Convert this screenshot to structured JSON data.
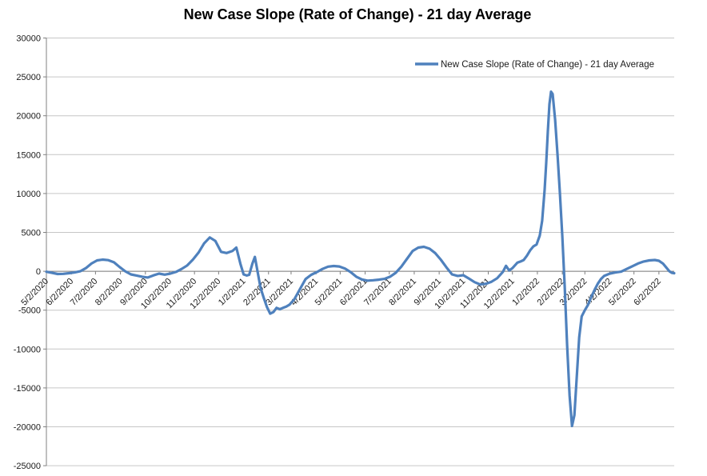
{
  "chart": {
    "title": "New Case Slope (Rate of Change) - 21 day Average",
    "legend_label": "New Case Slope (Rate of Change) - 21 day Average"
  },
  "chart_data": {
    "type": "line",
    "title": "New Case Slope (Rate of Change) - 21 day Average",
    "xlabel": "",
    "ylabel": "",
    "ylim": [
      -25000,
      30000
    ],
    "y_tick_step": 5000,
    "y_ticks": [
      30000,
      25000,
      20000,
      15000,
      10000,
      5000,
      0,
      -5000,
      -10000,
      -15000,
      -20000,
      -25000
    ],
    "x_tick_labels": [
      "5/2/2020",
      "6/2/2020",
      "7/2/2020",
      "8/2/2020",
      "9/2/2020",
      "10/2/2020",
      "11/2/2020",
      "12/2/2020",
      "1/2/2021",
      "2/2/2021",
      "3/2/2021",
      "4/2/2021",
      "5/2/2021",
      "6/2/2021",
      "7/2/2021",
      "8/2/2021",
      "9/2/2021",
      "10/2/2021",
      "11/2/2021",
      "12/2/2021",
      "1/2/2022",
      "2/2/2022",
      "3/2/2022",
      "4/2/2022",
      "5/2/2022",
      "6/2/2022"
    ],
    "grid": true,
    "legend_position": "top-right",
    "colors": {
      "line": "#4F81BD",
      "gridline": "#C6C6C6",
      "axis": "#808080",
      "text": "#1a1a1a"
    },
    "series": [
      {
        "name": "New Case Slope (Rate of Change) - 21 day Average",
        "points": [
          [
            "5/2/2020",
            -60
          ],
          [
            "5/9/2020",
            -200
          ],
          [
            "5/16/2020",
            -350
          ],
          [
            "5/23/2020",
            -330
          ],
          [
            "5/30/2020",
            -250
          ],
          [
            "6/6/2020",
            -150
          ],
          [
            "6/13/2020",
            0
          ],
          [
            "6/20/2020",
            400
          ],
          [
            "6/27/2020",
            1000
          ],
          [
            "7/4/2020",
            1400
          ],
          [
            "7/11/2020",
            1500
          ],
          [
            "7/18/2020",
            1430
          ],
          [
            "7/25/2020",
            1150
          ],
          [
            "8/1/2020",
            550
          ],
          [
            "8/8/2020",
            0
          ],
          [
            "8/15/2020",
            -400
          ],
          [
            "8/22/2020",
            -550
          ],
          [
            "8/29/2020",
            -700
          ],
          [
            "9/5/2020",
            -800
          ],
          [
            "9/12/2020",
            -520
          ],
          [
            "9/19/2020",
            -300
          ],
          [
            "9/26/2020",
            -430
          ],
          [
            "10/3/2020",
            -300
          ],
          [
            "10/10/2020",
            -80
          ],
          [
            "10/17/2020",
            300
          ],
          [
            "10/24/2020",
            750
          ],
          [
            "10/31/2020",
            1500
          ],
          [
            "11/7/2020",
            2400
          ],
          [
            "11/14/2020",
            3600
          ],
          [
            "11/21/2020",
            4350
          ],
          [
            "11/28/2020",
            3900
          ],
          [
            "12/5/2020",
            2500
          ],
          [
            "12/12/2020",
            2350
          ],
          [
            "12/19/2020",
            2600
          ],
          [
            "12/24/2020",
            3050
          ],
          [
            "12/29/2020",
            1000
          ],
          [
            "1/2/2021",
            -400
          ],
          [
            "1/6/2021",
            -550
          ],
          [
            "1/9/2021",
            -450
          ],
          [
            "1/13/2021",
            1000
          ],
          [
            "1/16/2021",
            1850
          ],
          [
            "1/20/2021",
            -400
          ],
          [
            "1/23/2021",
            -2100
          ],
          [
            "1/27/2021",
            -3400
          ],
          [
            "1/31/2021",
            -4600
          ],
          [
            "2/4/2021",
            -5450
          ],
          [
            "2/8/2021",
            -5250
          ],
          [
            "2/12/2021",
            -4700
          ],
          [
            "2/16/2021",
            -4880
          ],
          [
            "2/20/2021",
            -4700
          ],
          [
            "2/24/2021",
            -4550
          ],
          [
            "2/28/2021",
            -4300
          ],
          [
            "3/6/2021",
            -3600
          ],
          [
            "3/13/2021",
            -2300
          ],
          [
            "3/20/2021",
            -1000
          ],
          [
            "3/27/2021",
            -450
          ],
          [
            "4/3/2021",
            -100
          ],
          [
            "4/10/2021",
            300
          ],
          [
            "4/17/2021",
            600
          ],
          [
            "4/24/2021",
            680
          ],
          [
            "5/1/2021",
            620
          ],
          [
            "5/8/2021",
            350
          ],
          [
            "5/15/2021",
            -100
          ],
          [
            "5/22/2021",
            -700
          ],
          [
            "5/29/2021",
            -1050
          ],
          [
            "6/5/2021",
            -1200
          ],
          [
            "6/12/2021",
            -1150
          ],
          [
            "6/19/2021",
            -1080
          ],
          [
            "6/26/2021",
            -980
          ],
          [
            "7/3/2021",
            -700
          ],
          [
            "7/10/2021",
            -200
          ],
          [
            "7/17/2021",
            600
          ],
          [
            "7/24/2021",
            1600
          ],
          [
            "7/31/2021",
            2600
          ],
          [
            "8/7/2021",
            3050
          ],
          [
            "8/14/2021",
            3150
          ],
          [
            "8/21/2021",
            2900
          ],
          [
            "8/28/2021",
            2350
          ],
          [
            "9/4/2021",
            1500
          ],
          [
            "9/11/2021",
            500
          ],
          [
            "9/18/2021",
            -400
          ],
          [
            "9/25/2021",
            -600
          ],
          [
            "10/2/2021",
            -500
          ],
          [
            "10/9/2021",
            -950
          ],
          [
            "10/16/2021",
            -1400
          ],
          [
            "10/23/2021",
            -1700
          ],
          [
            "10/30/2021",
            -1600
          ],
          [
            "11/6/2021",
            -1350
          ],
          [
            "11/13/2021",
            -900
          ],
          [
            "11/20/2021",
            -100
          ],
          [
            "11/24/2021",
            700
          ],
          [
            "11/28/2021",
            100
          ],
          [
            "12/2/2021",
            400
          ],
          [
            "12/8/2021",
            1100
          ],
          [
            "12/12/2021",
            1250
          ],
          [
            "12/16/2021",
            1450
          ],
          [
            "12/20/2021",
            2000
          ],
          [
            "12/24/2021",
            2700
          ],
          [
            "12/28/2021",
            3200
          ],
          [
            "1/1/2022",
            3450
          ],
          [
            "1/5/2022",
            4600
          ],
          [
            "1/8/2022",
            6500
          ],
          [
            "1/11/2022",
            10500
          ],
          [
            "1/13/2022",
            14000
          ],
          [
            "1/15/2022",
            18000
          ],
          [
            "1/17/2022",
            21500
          ],
          [
            "1/19/2022",
            23100
          ],
          [
            "1/21/2022",
            22800
          ],
          [
            "1/24/2022",
            19500
          ],
          [
            "1/27/2022",
            15000
          ],
          [
            "1/30/2022",
            10000
          ],
          [
            "2/2/2022",
            4500
          ],
          [
            "2/5/2022",
            -2000
          ],
          [
            "2/8/2022",
            -9500
          ],
          [
            "2/11/2022",
            -16000
          ],
          [
            "2/14/2022",
            -19900
          ],
          [
            "2/17/2022",
            -18500
          ],
          [
            "2/20/2022",
            -13500
          ],
          [
            "2/23/2022",
            -8500
          ],
          [
            "2/26/2022",
            -5800
          ],
          [
            "3/2/2022",
            -5000
          ],
          [
            "3/6/2022",
            -4300
          ],
          [
            "3/10/2022",
            -3300
          ],
          [
            "3/14/2022",
            -2400
          ],
          [
            "3/18/2022",
            -1600
          ],
          [
            "3/22/2022",
            -1000
          ],
          [
            "3/26/2022",
            -600
          ],
          [
            "4/2/2022",
            -300
          ],
          [
            "4/9/2022",
            -150
          ],
          [
            "4/16/2022",
            -50
          ],
          [
            "4/23/2022",
            300
          ],
          [
            "4/30/2022",
            650
          ],
          [
            "5/7/2022",
            1000
          ],
          [
            "5/14/2022",
            1250
          ],
          [
            "5/21/2022",
            1400
          ],
          [
            "5/28/2022",
            1450
          ],
          [
            "6/2/2022",
            1350
          ],
          [
            "6/7/2022",
            1000
          ],
          [
            "6/11/2022",
            500
          ],
          [
            "6/15/2022",
            0
          ],
          [
            "6/18/2022",
            -200
          ],
          [
            "6/21/2022",
            -250
          ]
        ]
      }
    ]
  }
}
